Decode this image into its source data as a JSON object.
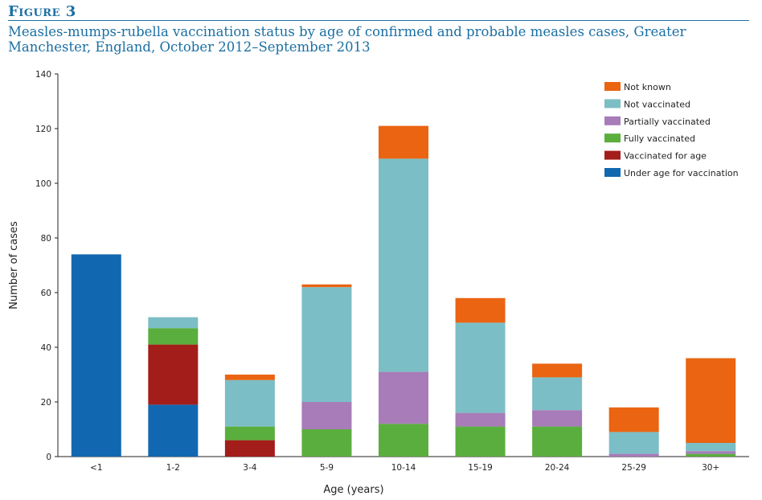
{
  "figure": {
    "label": "Figure 3",
    "title": "Measles-mumps-rubella vaccination status by age of confirmed and probable measles cases, Greater Manchester, England, October 2012–September 2013"
  },
  "chart_data": {
    "type": "bar",
    "stacked": true,
    "xlabel": "Age (years)",
    "ylabel": "Number of cases",
    "ylim": [
      0,
      140
    ],
    "yticks": [
      0,
      20,
      40,
      60,
      80,
      100,
      120,
      140
    ],
    "grid": false,
    "legend_position": "top-right",
    "categories": [
      "<1",
      "1-2",
      "3-4",
      "5-9",
      "10-14",
      "15-19",
      "20-24",
      "25-29",
      "30+"
    ],
    "series": [
      {
        "name": "Under age for vaccination",
        "color": "#1268b0",
        "values": [
          74,
          19,
          0,
          0,
          0,
          0,
          0,
          0,
          0
        ]
      },
      {
        "name": "Vaccinated for age",
        "color": "#a31d1a",
        "values": [
          0,
          22,
          6,
          0,
          0,
          0,
          0,
          0,
          0
        ]
      },
      {
        "name": "Fully vaccinated",
        "color": "#5aae3d",
        "values": [
          0,
          6,
          5,
          10,
          12,
          11,
          11,
          0,
          1
        ]
      },
      {
        "name": "Partially vaccinated",
        "color": "#a77cb8",
        "values": [
          0,
          0,
          0,
          10,
          19,
          5,
          6,
          1,
          1
        ]
      },
      {
        "name": "Not vaccinated",
        "color": "#7cbec6",
        "values": [
          0,
          4,
          17,
          42,
          78,
          33,
          12,
          8,
          3
        ]
      },
      {
        "name": "Not known",
        "color": "#ea6412",
        "values": [
          0,
          0,
          2,
          1,
          12,
          9,
          5,
          9,
          31
        ]
      }
    ]
  }
}
